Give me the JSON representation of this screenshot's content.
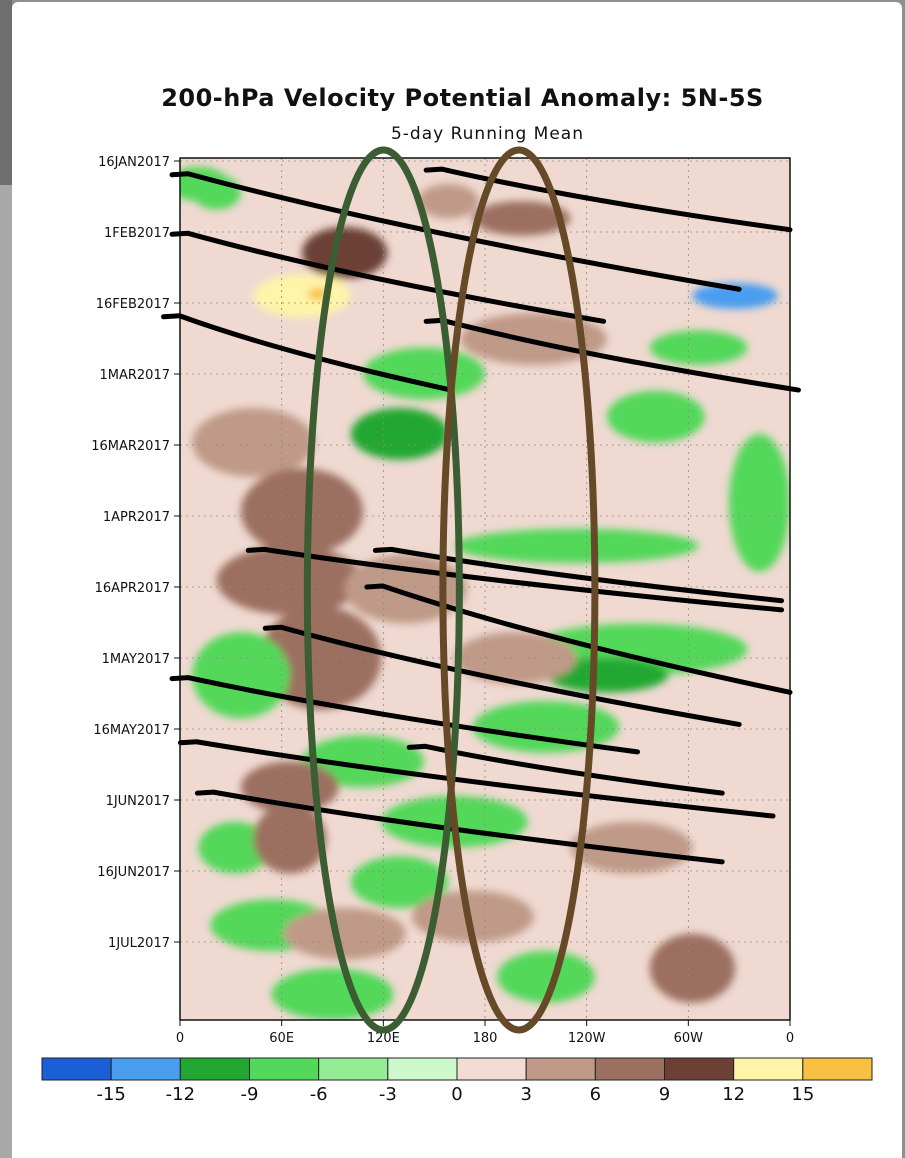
{
  "chart_data": {
    "type": "heatmap",
    "title": "200-hPa Velocity Potential Anomaly: 5N-5S",
    "subtitle": "5-day Running Mean",
    "y_tick_labels": [
      "16JAN2017",
      "1FEB2017",
      "16FEB2017",
      "1MAR2017",
      "16MAR2017",
      "1APR2017",
      "16APR2017",
      "1MAY2017",
      "16MAY2017",
      "1JUN2017",
      "16JUN2017",
      "1JUL2017"
    ],
    "x_tick_labels": [
      "0",
      "60E",
      "120E",
      "180",
      "120W",
      "60W",
      "0"
    ],
    "x_tick_values_deg_east": [
      0,
      60,
      120,
      180,
      240,
      300,
      360
    ],
    "y_range": [
      "2017-01-16",
      "2017-07-15"
    ],
    "colorbar": {
      "ticks": [
        "-15",
        "-12",
        "-9",
        "-6",
        "-3",
        "0",
        "3",
        "6",
        "9",
        "12",
        "15"
      ],
      "colors": [
        "#1a5fd6",
        "#4a9ef0",
        "#22a832",
        "#52d85a",
        "#96ec94",
        "#cdf8cc",
        "#f2dcd4",
        "#c09a88",
        "#9c7060",
        "#6c4034",
        "#fff4a8",
        "#f8c040"
      ]
    },
    "annotations": {
      "ellipses": [
        {
          "name": "green",
          "center_lon": 120,
          "color": "#3c5c32"
        },
        {
          "name": "brown",
          "center_lon": 200,
          "color": "#664a28"
        }
      ],
      "propagation_lines": [
        {
          "start": {
            "lon": 0,
            "date": "2017-01-19"
          },
          "end": {
            "lon": 330,
            "date": "2017-02-13"
          }
        },
        {
          "start": {
            "lon": 150,
            "date": "2017-01-18"
          },
          "end": {
            "lon": 360,
            "date": "2017-01-31"
          }
        },
        {
          "start": {
            "lon": 0,
            "date": "2017-02-01"
          },
          "end": {
            "lon": 250,
            "date": "2017-02-20"
          }
        },
        {
          "start": {
            "lon": -5,
            "date": "2017-02-19"
          },
          "end": {
            "lon": 160,
            "date": "2017-03-07"
          }
        },
        {
          "start": {
            "lon": 150,
            "date": "2017-02-20"
          },
          "end": {
            "lon": 365,
            "date": "2017-03-07"
          }
        },
        {
          "start": {
            "lon": 45,
            "date": "2017-04-11"
          },
          "end": {
            "lon": 355,
            "date": "2017-04-24"
          }
        },
        {
          "start": {
            "lon": 120,
            "date": "2017-04-11"
          },
          "end": {
            "lon": 355,
            "date": "2017-04-22"
          }
        },
        {
          "start": {
            "lon": 115,
            "date": "2017-04-19"
          },
          "end": {
            "lon": 360,
            "date": "2017-05-12"
          }
        },
        {
          "start": {
            "lon": 55,
            "date": "2017-04-28"
          },
          "end": {
            "lon": 330,
            "date": "2017-05-19"
          }
        },
        {
          "start": {
            "lon": 0,
            "date": "2017-05-09"
          },
          "end": {
            "lon": 270,
            "date": "2017-05-25"
          }
        },
        {
          "start": {
            "lon": 140,
            "date": "2017-05-24"
          },
          "end": {
            "lon": 320,
            "date": "2017-06-03"
          }
        },
        {
          "start": {
            "lon": 5,
            "date": "2017-05-23"
          },
          "end": {
            "lon": 350,
            "date": "2017-06-08"
          }
        },
        {
          "start": {
            "lon": 15,
            "date": "2017-06-03"
          },
          "end": {
            "lon": 320,
            "date": "2017-06-18"
          }
        }
      ]
    }
  }
}
